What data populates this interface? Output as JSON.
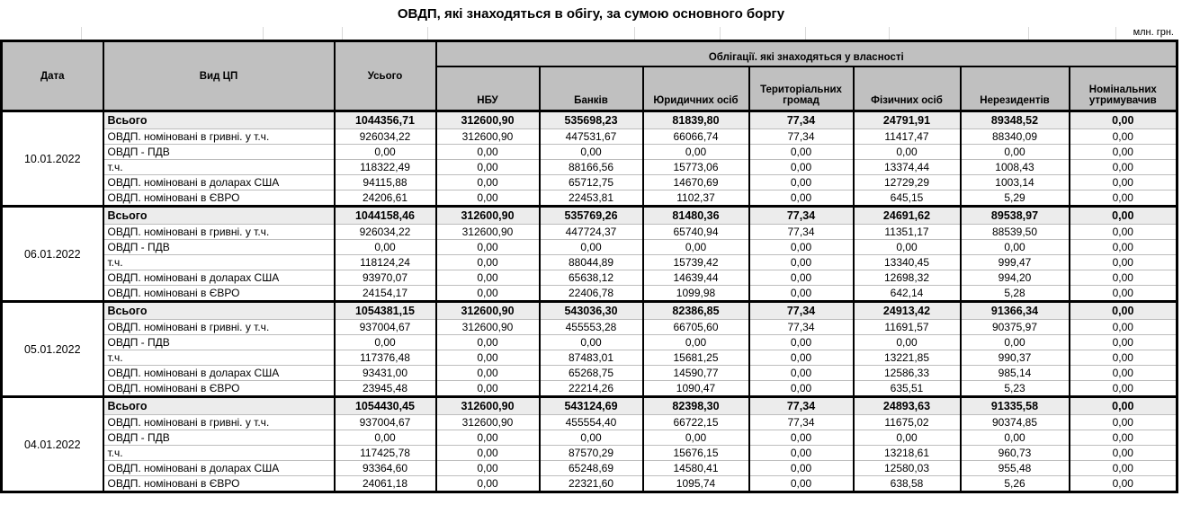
{
  "title": "ОВДП, які знаходяться в обігу, за сумою основного боргу",
  "unit_label": "млн. грн.",
  "colors": {
    "header_bg": "#c0c0c0",
    "total_row_bg": "#ececec",
    "border": "#000000",
    "row_separator": "#bdbdbd"
  },
  "table": {
    "headers": {
      "date": "Дата",
      "type": "Вид ЦП",
      "total": "Усього",
      "ownership_group": "Облігації. які знаходяться у власності",
      "owners": [
        "НБУ",
        "Банків",
        "Юридичних осіб",
        "Територіальних громад",
        "Фізичних осіб",
        "Нерезидентів",
        "Номінальних утримувачив"
      ]
    },
    "groups": [
      {
        "date": "10.01.2022",
        "rows": [
          {
            "label": "Всього",
            "values": [
              "1044356,71",
              "312600,90",
              "535698,23",
              "81839,80",
              "77,34",
              "24791,91",
              "89348,52",
              "0,00"
            ]
          },
          {
            "label": "ОВДП. номіновані в гривні. у т.ч.",
            "values": [
              "926034,22",
              "312600,90",
              "447531,67",
              "66066,74",
              "77,34",
              "11417,47",
              "88340,09",
              "0,00"
            ]
          },
          {
            "label": "ОВДП - ПДВ",
            "values": [
              "0,00",
              "0,00",
              "0,00",
              "0,00",
              "0,00",
              "0,00",
              "0,00",
              "0,00"
            ]
          },
          {
            "label": "т.ч.",
            "values": [
              "118322,49",
              "0,00",
              "88166,56",
              "15773,06",
              "0,00",
              "13374,44",
              "1008,43",
              "0,00"
            ]
          },
          {
            "label": "ОВДП. номіновані в доларах США",
            "values": [
              "94115,88",
              "0,00",
              "65712,75",
              "14670,69",
              "0,00",
              "12729,29",
              "1003,14",
              "0,00"
            ]
          },
          {
            "label": "ОВДП. номіновані в ЄВРО",
            "values": [
              "24206,61",
              "0,00",
              "22453,81",
              "1102,37",
              "0,00",
              "645,15",
              "5,29",
              "0,00"
            ]
          }
        ]
      },
      {
        "date": "06.01.2022",
        "rows": [
          {
            "label": "Всього",
            "values": [
              "1044158,46",
              "312600,90",
              "535769,26",
              "81480,36",
              "77,34",
              "24691,62",
              "89538,97",
              "0,00"
            ]
          },
          {
            "label": "ОВДП. номіновані в гривні. у т.ч.",
            "values": [
              "926034,22",
              "312600,90",
              "447724,37",
              "65740,94",
              "77,34",
              "11351,17",
              "88539,50",
              "0,00"
            ]
          },
          {
            "label": "ОВДП - ПДВ",
            "values": [
              "0,00",
              "0,00",
              "0,00",
              "0,00",
              "0,00",
              "0,00",
              "0,00",
              "0,00"
            ]
          },
          {
            "label": "т.ч.",
            "values": [
              "118124,24",
              "0,00",
              "88044,89",
              "15739,42",
              "0,00",
              "13340,45",
              "999,47",
              "0,00"
            ]
          },
          {
            "label": "ОВДП. номіновані в доларах США",
            "values": [
              "93970,07",
              "0,00",
              "65638,12",
              "14639,44",
              "0,00",
              "12698,32",
              "994,20",
              "0,00"
            ]
          },
          {
            "label": "ОВДП. номіновані в ЄВРО",
            "values": [
              "24154,17",
              "0,00",
              "22406,78",
              "1099,98",
              "0,00",
              "642,14",
              "5,28",
              "0,00"
            ]
          }
        ]
      },
      {
        "date": "05.01.2022",
        "rows": [
          {
            "label": "Всього",
            "values": [
              "1054381,15",
              "312600,90",
              "543036,30",
              "82386,85",
              "77,34",
              "24913,42",
              "91366,34",
              "0,00"
            ]
          },
          {
            "label": "ОВДП. номіновані в гривні. у т.ч.",
            "values": [
              "937004,67",
              "312600,90",
              "455553,28",
              "66705,60",
              "77,34",
              "11691,57",
              "90375,97",
              "0,00"
            ]
          },
          {
            "label": "ОВДП - ПДВ",
            "values": [
              "0,00",
              "0,00",
              "0,00",
              "0,00",
              "0,00",
              "0,00",
              "0,00",
              "0,00"
            ]
          },
          {
            "label": "т.ч.",
            "values": [
              "117376,48",
              "0,00",
              "87483,01",
              "15681,25",
              "0,00",
              "13221,85",
              "990,37",
              "0,00"
            ]
          },
          {
            "label": "ОВДП. номіновані в доларах США",
            "values": [
              "93431,00",
              "0,00",
              "65268,75",
              "14590,77",
              "0,00",
              "12586,33",
              "985,14",
              "0,00"
            ]
          },
          {
            "label": "ОВДП. номіновані в ЄВРО",
            "values": [
              "23945,48",
              "0,00",
              "22214,26",
              "1090,47",
              "0,00",
              "635,51",
              "5,23",
              "0,00"
            ]
          }
        ]
      },
      {
        "date": "04.01.2022",
        "rows": [
          {
            "label": "Всього",
            "values": [
              "1054430,45",
              "312600,90",
              "543124,69",
              "82398,30",
              "77,34",
              "24893,63",
              "91335,58",
              "0,00"
            ]
          },
          {
            "label": "ОВДП. номіновані в гривні. у т.ч.",
            "values": [
              "937004,67",
              "312600,90",
              "455554,40",
              "66722,15",
              "77,34",
              "11675,02",
              "90374,85",
              "0,00"
            ]
          },
          {
            "label": "ОВДП - ПДВ",
            "values": [
              "0,00",
              "0,00",
              "0,00",
              "0,00",
              "0,00",
              "0,00",
              "0,00",
              "0,00"
            ]
          },
          {
            "label": "т.ч.",
            "values": [
              "117425,78",
              "0,00",
              "87570,29",
              "15676,15",
              "0,00",
              "13218,61",
              "960,73",
              "0,00"
            ]
          },
          {
            "label": "ОВДП. номіновані в доларах США",
            "values": [
              "93364,60",
              "0,00",
              "65248,69",
              "14580,41",
              "0,00",
              "12580,03",
              "955,48",
              "0,00"
            ]
          },
          {
            "label": "ОВДП. номіновані в ЄВРО",
            "values": [
              "24061,18",
              "0,00",
              "22321,60",
              "1095,74",
              "0,00",
              "638,58",
              "5,26",
              "0,00"
            ]
          }
        ]
      }
    ]
  }
}
